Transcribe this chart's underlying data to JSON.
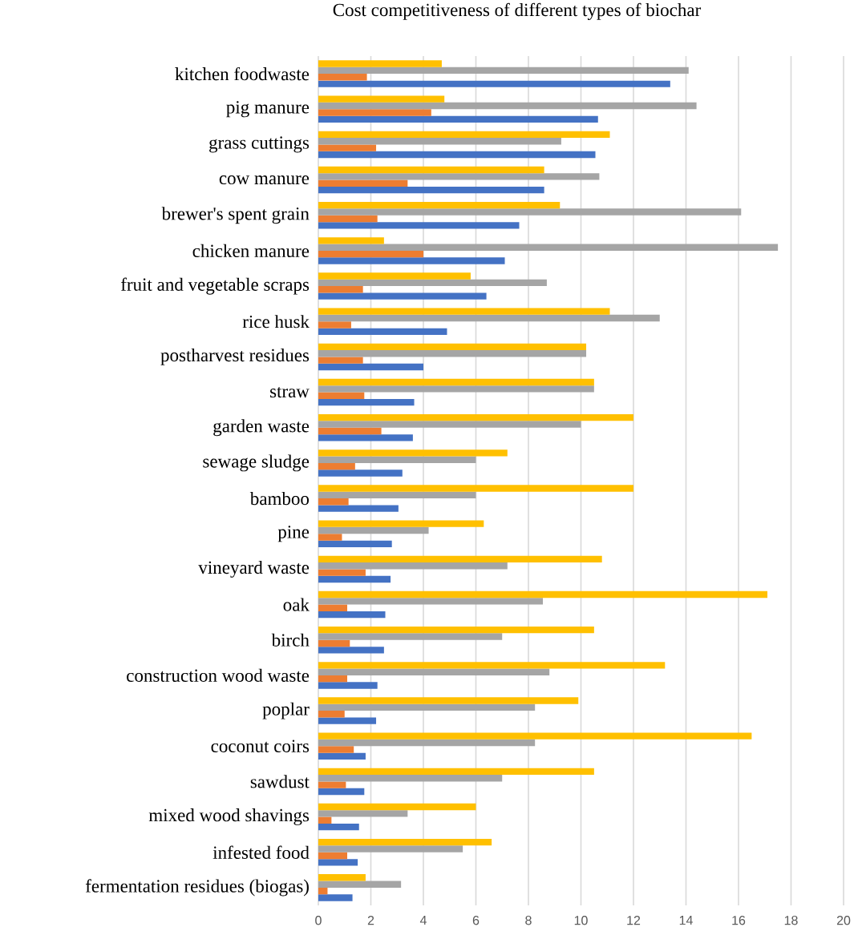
{
  "chart_data": {
    "type": "bar",
    "orientation": "horizontal",
    "title": "Cost competitiveness of different types of biochar",
    "categories": [
      "kitchen foodwaste",
      "pig manure",
      "grass cuttings",
      "cow manure",
      "brewer's spent grain",
      "chicken manure",
      "fruit and vegetable scraps",
      "rice husk",
      "postharvest residues",
      "straw",
      "garden waste",
      "sewage sludge",
      "bamboo",
      "pine",
      "vineyard waste",
      "oak",
      "birch",
      "construction wood  waste",
      "poplar",
      "coconut coirs",
      "sawdust",
      "mixed wood shavings",
      "infested food",
      "fermentation residues (biogas)"
    ],
    "series": [
      {
        "color": "#4472c4",
        "values": [
          13.4,
          10.65,
          10.55,
          8.6,
          7.65,
          7.1,
          6.4,
          4.9,
          4.0,
          3.65,
          3.6,
          3.2,
          3.05,
          2.8,
          2.75,
          2.55,
          2.5,
          2.25,
          2.2,
          1.8,
          1.75,
          1.55,
          1.5,
          1.3
        ]
      },
      {
        "color": "#ed7d31",
        "values": [
          1.85,
          4.3,
          2.2,
          3.4,
          2.25,
          4.0,
          1.7,
          1.25,
          1.7,
          1.75,
          2.4,
          1.4,
          1.15,
          0.9,
          1.8,
          1.1,
          1.2,
          1.1,
          1.0,
          1.35,
          1.05,
          0.5,
          1.1,
          0.35
        ]
      },
      {
        "color": "#a5a5a5",
        "values": [
          14.1,
          14.4,
          9.25,
          10.7,
          16.1,
          17.5,
          8.7,
          13.0,
          10.2,
          10.5,
          10.0,
          6.0,
          6.0,
          4.2,
          7.2,
          8.55,
          7.0,
          8.8,
          8.25,
          8.25,
          7.0,
          3.4,
          5.5,
          3.15
        ]
      },
      {
        "color": "#ffc000",
        "values": [
          4.7,
          4.8,
          11.1,
          8.6,
          9.2,
          2.5,
          5.8,
          11.1,
          10.2,
          10.5,
          12.0,
          7.2,
          12.0,
          6.3,
          10.8,
          17.1,
          10.5,
          13.2,
          9.9,
          16.5,
          10.5,
          6.0,
          6.6,
          1.8
        ]
      }
    ],
    "xlim": [
      0,
      20
    ],
    "xticks": [
      0,
      2,
      4,
      6,
      8,
      10,
      12,
      14,
      16,
      18,
      20
    ],
    "grid": "x"
  }
}
